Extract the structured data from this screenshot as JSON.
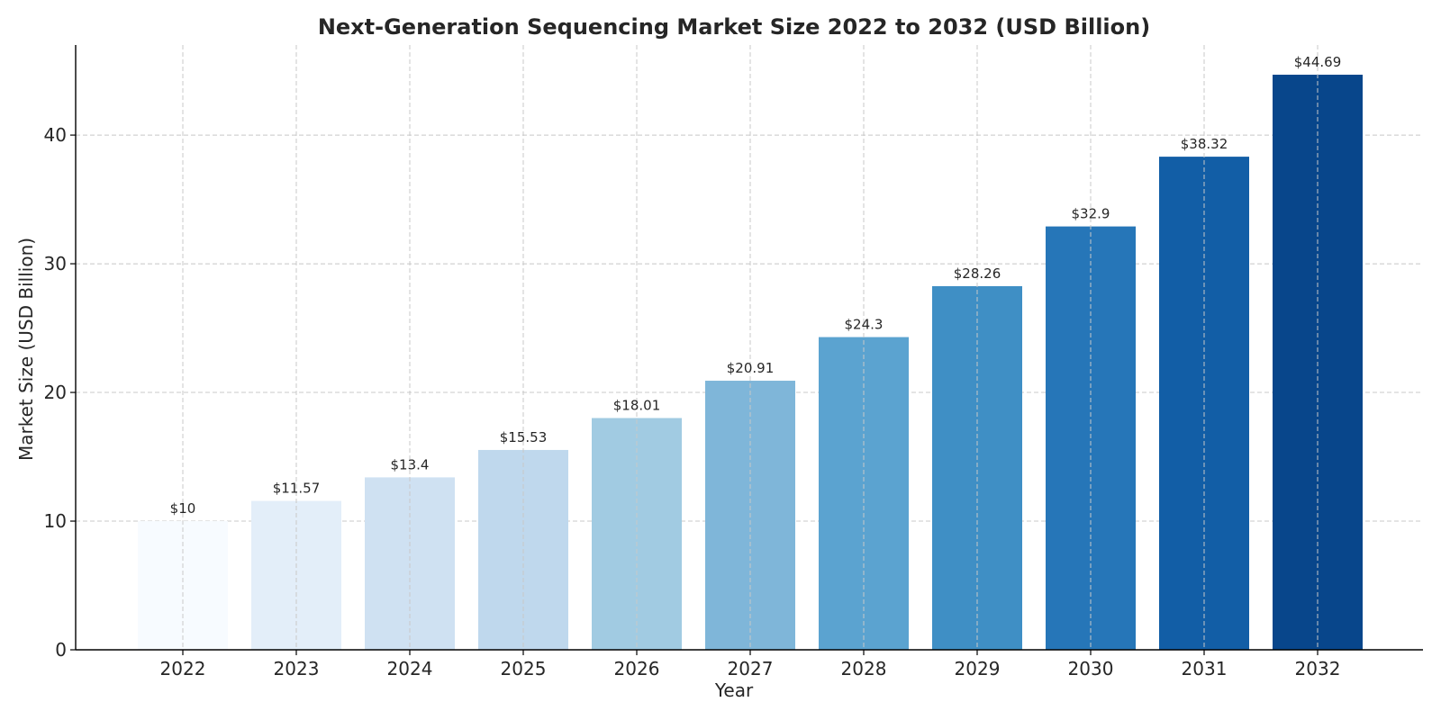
{
  "chart_data": {
    "type": "bar",
    "title": "Next-Generation Sequencing Market Size 2022 to 2032 (USD Billion)",
    "xlabel": "Year",
    "ylabel": "Market Size (USD Billion)",
    "categories": [
      "2022",
      "2023",
      "2024",
      "2025",
      "2026",
      "2027",
      "2028",
      "2029",
      "2030",
      "2031",
      "2032"
    ],
    "values": [
      10,
      11.57,
      13.4,
      15.53,
      18.01,
      20.91,
      24.3,
      28.26,
      32.9,
      38.32,
      44.69
    ],
    "data_labels": [
      "$10",
      "$11.57",
      "$13.4",
      "$15.53",
      "$18.01",
      "$20.91",
      "$24.3",
      "$28.26",
      "$32.9",
      "$38.32",
      "$44.69"
    ],
    "ylim": [
      0,
      47
    ],
    "yticks": [
      0,
      10,
      20,
      30,
      40
    ],
    "grid": true,
    "colors": [
      "#f7fbff",
      "#e3eef9",
      "#cfe1f2",
      "#bfd8ed",
      "#a1cbe2",
      "#7fb6d9",
      "#5ba3d0",
      "#3f8fc5",
      "#2676b8",
      "#125ea6",
      "#08468b"
    ]
  }
}
